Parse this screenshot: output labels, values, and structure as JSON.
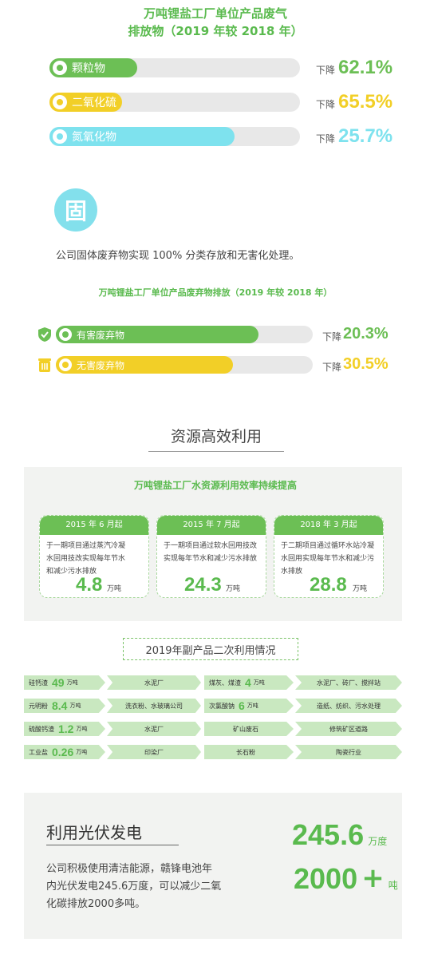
{
  "air": {
    "title_line1": "万吨锂盐工厂单位产品废气",
    "title_line2": "排放物（2019 年较 2018 年）",
    "items": [
      {
        "label": "颗粒物",
        "decrease_label": "下降",
        "value": "62.1%",
        "fill": 0.35,
        "color": "#6cbf55"
      },
      {
        "label": "二氧化硫",
        "decrease_label": "下降",
        "value": "65.5%",
        "fill": 0.29,
        "color": "#f2cf27"
      },
      {
        "label": "氮氧化物",
        "decrease_label": "下降",
        "value": "25.7%",
        "fill": 0.74,
        "color": "#7ee2ee"
      }
    ]
  },
  "solid": {
    "icon_char": "固",
    "statement": "公司固体废弃物实现 100% 分类存放和无害化处理。",
    "title": "万吨锂盐工厂单位产品废弃物排放（2019 年较 2018 年）",
    "items": [
      {
        "label": "有害废弃物",
        "icon": "shield-icon",
        "decrease_label": "下降",
        "value": "20.3%",
        "fill": 0.79,
        "color": "#6cbf55"
      },
      {
        "label": "无害废弃物",
        "icon": "recycle-bin-icon",
        "decrease_label": "下降",
        "value": "30.5%",
        "fill": 0.69,
        "color": "#f2cf27"
      }
    ]
  },
  "resource": {
    "heading": "资源高效利用",
    "water_title": "万吨锂盐工厂水资源利用效率持续提高",
    "cards": [
      {
        "date": "2015 年 6 月起",
        "text": "于一期项目通过蒸汽冷凝水回用技改实现每年节水和减少污水排放",
        "value": "4.8",
        "unit": "万吨"
      },
      {
        "date": "2015 年 7 月起",
        "text": "于一期项目通过软水回用技改实现每年节水和减少污水排放",
        "value": "24.3",
        "unit": "万吨"
      },
      {
        "date": "2018 年 3 月起",
        "text": "于二期项目通过循环水站冷凝水回用实现每年节水和减少污水排放",
        "value": "28.8",
        "unit": "万吨"
      }
    ]
  },
  "byproducts": {
    "title": "2019年副产品二次利用情况",
    "left": [
      {
        "name": "硅钙渣",
        "value": "49",
        "unit": "万吨",
        "use": "水泥厂"
      },
      {
        "name": "元明粉",
        "value": "8.4",
        "unit": "万吨",
        "use": "洗衣粉、水玻璃公司"
      },
      {
        "name": "硫酸钙渣",
        "value": "1.2",
        "unit": "万吨",
        "use": "水泥厂"
      },
      {
        "name": "工业盐",
        "value": "0.26",
        "unit": "万吨",
        "use": "印染厂"
      }
    ],
    "right": [
      {
        "name": "煤灰、煤渣",
        "value": "4",
        "unit": "万吨",
        "use": "水泥厂、砖厂、搅拌站"
      },
      {
        "name": "次氯酸钠",
        "value": "6",
        "unit": "万吨",
        "use": "造纸、纺织、污水处理"
      },
      {
        "name": "矿山废石",
        "value": "",
        "unit": "",
        "use": "修筑矿区道路"
      },
      {
        "name": "长石粉",
        "value": "",
        "unit": "",
        "use": "陶瓷行业"
      }
    ]
  },
  "solar": {
    "heading": "利用光伏发电",
    "text": "公司积极使用清洁能源，赣锋电池年内光伏发电245.6万度，可以减少二氧化碳排放2000多吨。",
    "stat1_value": "245.6",
    "stat1_unit": "万度",
    "stat2_value": "2000",
    "stat2_plus": "+",
    "stat2_unit": "吨"
  }
}
